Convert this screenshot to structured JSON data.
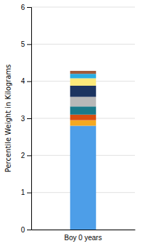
{
  "chart_data": {
    "type": "bar",
    "stacked": true,
    "ylabel": "Percentile Weight in Kilograms",
    "categories": [
      "Boy 0 years"
    ],
    "series": [
      {
        "color": "#4d9ee8",
        "values": [
          2.8
        ]
      },
      {
        "color": "#f5a820",
        "values": [
          0.15
        ]
      },
      {
        "color": "#d94e10",
        "values": [
          0.15
        ]
      },
      {
        "color": "#1a7a8a",
        "values": [
          0.22
        ]
      },
      {
        "color": "#b8b8b8",
        "values": [
          0.26
        ]
      },
      {
        "color": "#1c3460",
        "values": [
          0.3
        ]
      },
      {
        "color": "#fce97a",
        "values": [
          0.2
        ]
      },
      {
        "color": "#2aade4",
        "values": [
          0.12
        ]
      },
      {
        "color": "#a05a3a",
        "values": [
          0.08
        ]
      }
    ],
    "ylim": [
      0,
      6
    ],
    "yticks": [
      0,
      1,
      2,
      3,
      4,
      5,
      6
    ],
    "grid": true
  }
}
